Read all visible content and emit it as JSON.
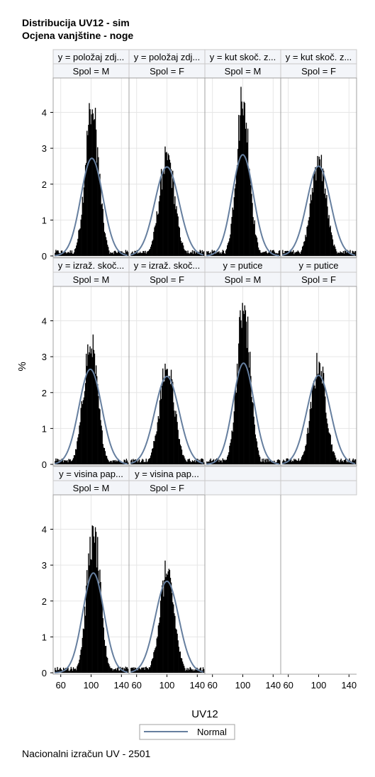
{
  "title_line1": "Distribucija UV12 - sim",
  "title_line2": "Ocjena vanjštine - noge",
  "footnote": "Nacionalni izračun UV - 2501",
  "colors": {
    "bars": "#000000",
    "normal_curve": "#667F9F",
    "grid": "#E6E6E6",
    "header_bg": "#F3F5F9",
    "frame": "#A0A0A0"
  },
  "chart_data": {
    "type": "histogram-panel",
    "xlabel": "UV12",
    "ylabel": "%",
    "x_ticks": [
      60,
      100,
      140
    ],
    "y_ticks": [
      0,
      1,
      2,
      3,
      4
    ],
    "xlim": [
      50,
      150
    ],
    "ylim": [
      0,
      4.8
    ],
    "legend": {
      "position": "bottom-center",
      "entries": [
        "Normal"
      ]
    },
    "panels": [
      {
        "row": 0,
        "col": 0,
        "header1": "y = položaj zdj...",
        "header2": "Spol = M",
        "mean": 101,
        "sd": 14.5,
        "peak": 4.3,
        "normal_peak": 2.72
      },
      {
        "row": 0,
        "col": 1,
        "header1": "y = položaj zdj...",
        "header2": "Spol = F",
        "mean": 100,
        "sd": 16.0,
        "peak": 2.9,
        "normal_peak": 2.48
      },
      {
        "row": 0,
        "col": 2,
        "header1": "y = kut skoč. z...",
        "header2": "Spol = M",
        "mean": 100,
        "sd": 14.0,
        "peak": 4.5,
        "normal_peak": 2.82
      },
      {
        "row": 0,
        "col": 3,
        "header1": "y = kut skoč. z...",
        "header2": "Spol = F",
        "mean": 100,
        "sd": 15.5,
        "peak": 2.85,
        "normal_peak": 2.5
      },
      {
        "row": 1,
        "col": 0,
        "header1": "y = izraž. skoč...",
        "header2": "Spol = M",
        "mean": 99,
        "sd": 15.0,
        "peak": 3.5,
        "normal_peak": 2.65
      },
      {
        "row": 1,
        "col": 1,
        "header1": "y = izraž. skoč...",
        "header2": "Spol = F",
        "mean": 100,
        "sd": 16.0,
        "peak": 2.8,
        "normal_peak": 2.45
      },
      {
        "row": 1,
        "col": 2,
        "header1": "y = putice",
        "header2": "Spol = M",
        "mean": 101,
        "sd": 14.0,
        "peak": 4.6,
        "normal_peak": 2.82
      },
      {
        "row": 1,
        "col": 3,
        "header1": "y = putice",
        "header2": "Spol = F",
        "mean": 100,
        "sd": 15.5,
        "peak": 2.9,
        "normal_peak": 2.48
      },
      {
        "row": 2,
        "col": 0,
        "header1": "y = visina pap...",
        "header2": "Spol = M",
        "mean": 103,
        "sd": 14.0,
        "peak": 4.15,
        "normal_peak": 2.78
      },
      {
        "row": 2,
        "col": 1,
        "header1": "y = visina pap...",
        "header2": "Spol = F",
        "mean": 100,
        "sd": 15.5,
        "peak": 2.9,
        "normal_peak": 2.55
      }
    ]
  }
}
